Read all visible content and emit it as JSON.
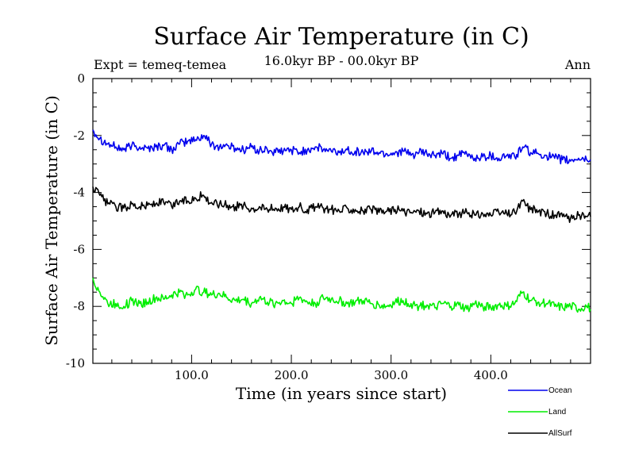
{
  "chart_data": {
    "type": "line",
    "title": "Surface Air Temperature (in C)",
    "subtitle": "16.0kyr BP - 00.0kyr BP",
    "left_annotation": "Expt = temeq-temea",
    "right_annotation": "Ann",
    "xlabel": "Time (in years since start)",
    "ylabel": "Surface Air Temperature (in C)",
    "xlim": [
      1,
      500
    ],
    "ylim": [
      -10,
      0
    ],
    "x_ticks": [
      100,
      200,
      300,
      400
    ],
    "x_tick_labels": [
      "100.0",
      "200.0",
      "300.0",
      "400.0"
    ],
    "y_ticks": [
      0,
      -2,
      -4,
      -6,
      -8,
      -10
    ],
    "y_tick_labels": [
      "0",
      "-2",
      "-4",
      "-6",
      "-8",
      "-10"
    ],
    "grid": false,
    "legend_position": "bottom-right",
    "series": [
      {
        "name": "Ocean",
        "color": "#0000ee",
        "x": [
          1,
          8,
          16,
          24,
          32,
          40,
          48,
          56,
          64,
          72,
          80,
          88,
          96,
          104,
          112,
          120,
          128,
          136,
          144,
          152,
          160,
          168,
          176,
          184,
          192,
          200,
          208,
          216,
          224,
          232,
          240,
          248,
          256,
          264,
          272,
          280,
          288,
          296,
          304,
          312,
          320,
          328,
          336,
          344,
          352,
          360,
          368,
          376,
          384,
          392,
          400,
          408,
          416,
          424,
          432,
          440,
          448,
          456,
          464,
          472,
          480,
          488,
          496,
          500
        ],
        "values": [
          -1.8,
          -2.1,
          -2.3,
          -2.4,
          -2.5,
          -2.35,
          -2.4,
          -2.45,
          -2.4,
          -2.35,
          -2.5,
          -2.3,
          -2.2,
          -2.15,
          -2.0,
          -2.3,
          -2.4,
          -2.35,
          -2.45,
          -2.5,
          -2.4,
          -2.55,
          -2.5,
          -2.6,
          -2.55,
          -2.5,
          -2.6,
          -2.5,
          -2.4,
          -2.5,
          -2.55,
          -2.6,
          -2.5,
          -2.55,
          -2.6,
          -2.55,
          -2.6,
          -2.65,
          -2.6,
          -2.55,
          -2.7,
          -2.6,
          -2.65,
          -2.7,
          -2.65,
          -2.8,
          -2.7,
          -2.65,
          -2.8,
          -2.75,
          -2.7,
          -2.8,
          -2.7,
          -2.75,
          -2.4,
          -2.6,
          -2.65,
          -2.7,
          -2.8,
          -2.85,
          -2.9,
          -2.8,
          -2.85,
          -2.85
        ]
      },
      {
        "name": "Land",
        "color": "#00ee00",
        "x": [
          1,
          8,
          16,
          24,
          32,
          40,
          48,
          56,
          64,
          72,
          80,
          88,
          96,
          104,
          112,
          120,
          128,
          136,
          144,
          152,
          160,
          168,
          176,
          184,
          192,
          200,
          208,
          216,
          224,
          232,
          240,
          248,
          256,
          264,
          272,
          280,
          288,
          296,
          304,
          312,
          320,
          328,
          336,
          344,
          352,
          360,
          368,
          376,
          384,
          392,
          400,
          408,
          416,
          424,
          432,
          440,
          448,
          456,
          464,
          472,
          480,
          488,
          496,
          500
        ],
        "values": [
          -7.0,
          -7.5,
          -7.9,
          -7.9,
          -8.0,
          -7.8,
          -7.9,
          -7.85,
          -7.7,
          -7.75,
          -7.6,
          -7.5,
          -7.6,
          -7.4,
          -7.5,
          -7.6,
          -7.55,
          -7.7,
          -7.8,
          -7.75,
          -7.9,
          -7.7,
          -7.85,
          -7.9,
          -7.8,
          -7.9,
          -7.7,
          -7.85,
          -7.9,
          -7.7,
          -7.75,
          -7.8,
          -7.9,
          -7.85,
          -7.8,
          -7.9,
          -7.95,
          -8.0,
          -7.85,
          -7.8,
          -7.9,
          -8.0,
          -7.95,
          -8.05,
          -7.9,
          -8.0,
          -7.95,
          -8.1,
          -7.9,
          -8.0,
          -8.05,
          -7.95,
          -8.0,
          -7.9,
          -7.5,
          -7.8,
          -7.85,
          -7.9,
          -8.0,
          -8.05,
          -8.0,
          -8.1,
          -8.0,
          -8.1
        ]
      },
      {
        "name": "AllSurf",
        "color": "#000000",
        "x": [
          1,
          8,
          16,
          24,
          32,
          40,
          48,
          56,
          64,
          72,
          80,
          88,
          96,
          104,
          112,
          120,
          128,
          136,
          144,
          152,
          160,
          168,
          176,
          184,
          192,
          200,
          208,
          216,
          224,
          232,
          240,
          248,
          256,
          264,
          272,
          280,
          288,
          296,
          304,
          312,
          320,
          328,
          336,
          344,
          352,
          360,
          368,
          376,
          384,
          392,
          400,
          408,
          416,
          424,
          432,
          440,
          448,
          456,
          464,
          472,
          480,
          488,
          496,
          500
        ],
        "values": [
          -3.8,
          -4.1,
          -4.4,
          -4.5,
          -4.55,
          -4.4,
          -4.5,
          -4.45,
          -4.4,
          -4.35,
          -4.5,
          -4.3,
          -4.3,
          -4.2,
          -4.1,
          -4.35,
          -4.4,
          -4.45,
          -4.5,
          -4.45,
          -4.55,
          -4.5,
          -4.6,
          -4.55,
          -4.5,
          -4.6,
          -4.5,
          -4.6,
          -4.5,
          -4.55,
          -4.6,
          -4.65,
          -4.55,
          -4.6,
          -4.65,
          -4.6,
          -4.7,
          -4.65,
          -4.6,
          -4.65,
          -4.7,
          -4.65,
          -4.75,
          -4.7,
          -4.65,
          -4.8,
          -4.75,
          -4.7,
          -4.8,
          -4.75,
          -4.8,
          -4.7,
          -4.75,
          -4.7,
          -4.3,
          -4.6,
          -4.65,
          -4.75,
          -4.8,
          -4.85,
          -4.9,
          -4.8,
          -4.85,
          -4.85
        ]
      }
    ]
  }
}
